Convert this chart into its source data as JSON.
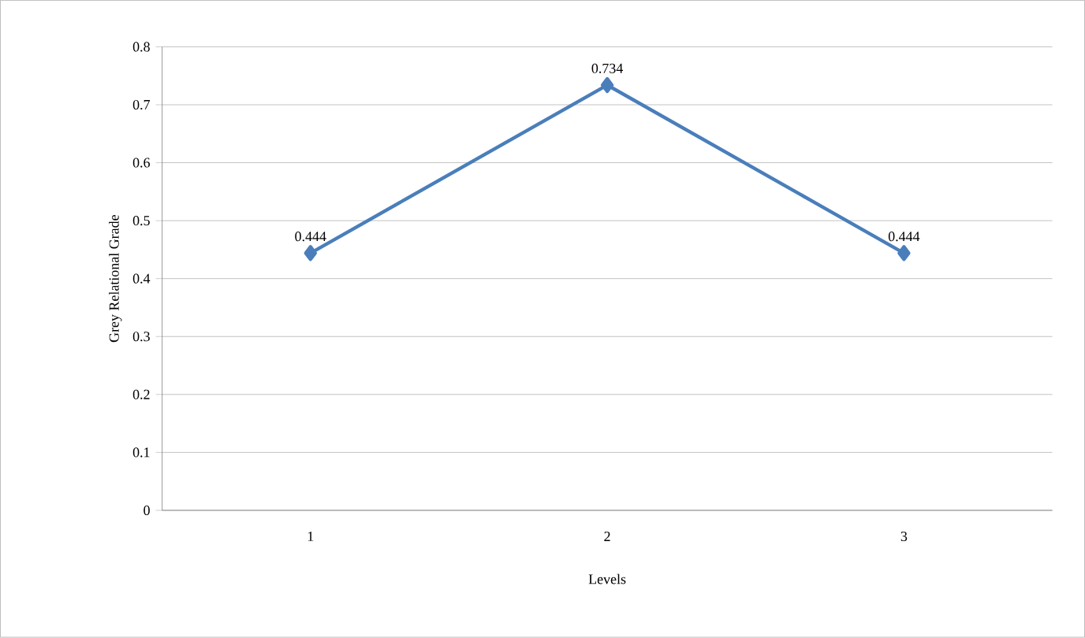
{
  "chart_data": {
    "type": "line",
    "xlabel": "Levels",
    "ylabel": "Grey Relational Grade",
    "categories": [
      "1",
      "2",
      "3"
    ],
    "values": [
      0.444,
      0.734,
      0.444
    ],
    "color": "#4a7ebb",
    "marker": "diamond",
    "line_style": "solid",
    "ylim": [
      0,
      0.8
    ],
    "yticks": [
      0,
      0.1,
      0.2,
      0.3,
      0.4,
      0.5,
      0.6,
      0.7,
      0.8
    ],
    "grid": "y",
    "data_labels": true
  }
}
